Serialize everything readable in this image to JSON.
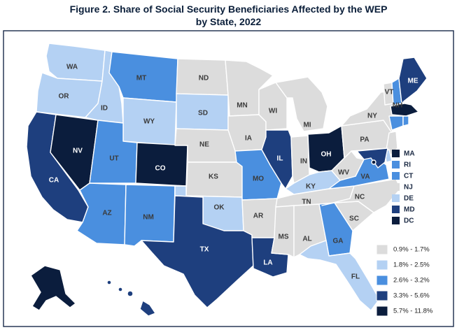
{
  "title": {
    "line1": "Figure 2. Share of Social Security Beneficiaries Affected by the WEP",
    "line2": "by State, 2022"
  },
  "colors": {
    "c0": "#dcdcdc",
    "c1": "#b4d1f3",
    "c2": "#4a8fdf",
    "c3": "#1e3f7e",
    "c4": "#0b1d3d"
  },
  "legend": [
    {
      "label": "0.9% - 1.7%",
      "class": "c0"
    },
    {
      "label": "1.8% - 2.5%",
      "class": "c1"
    },
    {
      "label": "2.6% - 3.2%",
      "class": "c2"
    },
    {
      "label": "3.3% - 5.6%",
      "class": "c3"
    },
    {
      "label": "5.7% - 11.8%",
      "class": "c4"
    }
  ],
  "small_states": [
    {
      "code": "MA",
      "class": "c4"
    },
    {
      "code": "RI",
      "class": "c2"
    },
    {
      "code": "CT",
      "class": "c2"
    },
    {
      "code": "NJ",
      "class": "c0"
    },
    {
      "code": "DE",
      "class": "c1"
    },
    {
      "code": "MD",
      "class": "c3"
    },
    {
      "code": "DC",
      "class": "c4"
    }
  ],
  "states": [
    {
      "code": "WA",
      "class": "c1"
    },
    {
      "code": "OR",
      "class": "c1"
    },
    {
      "code": "CA",
      "class": "c3"
    },
    {
      "code": "NV",
      "class": "c4"
    },
    {
      "code": "ID",
      "class": "c1"
    },
    {
      "code": "MT",
      "class": "c2"
    },
    {
      "code": "WY",
      "class": "c1"
    },
    {
      "code": "UT",
      "class": "c2"
    },
    {
      "code": "AZ",
      "class": "c2"
    },
    {
      "code": "NM",
      "class": "c2"
    },
    {
      "code": "CO",
      "class": "c4"
    },
    {
      "code": "ND",
      "class": "c0"
    },
    {
      "code": "SD",
      "class": "c1"
    },
    {
      "code": "NE",
      "class": "c0"
    },
    {
      "code": "KS",
      "class": "c0"
    },
    {
      "code": "OK",
      "class": "c1"
    },
    {
      "code": "TX",
      "class": "c3"
    },
    {
      "code": "MN",
      "class": "c0"
    },
    {
      "code": "IA",
      "class": "c0"
    },
    {
      "code": "MO",
      "class": "c2"
    },
    {
      "code": "AR",
      "class": "c0"
    },
    {
      "code": "LA",
      "class": "c3"
    },
    {
      "code": "WI",
      "class": "c0"
    },
    {
      "code": "IL",
      "class": "c3"
    },
    {
      "code": "MI",
      "class": "c0"
    },
    {
      "code": "IN",
      "class": "c0"
    },
    {
      "code": "OH",
      "class": "c4"
    },
    {
      "code": "KY",
      "class": "c1"
    },
    {
      "code": "TN",
      "class": "c0"
    },
    {
      "code": "MS",
      "class": "c0"
    },
    {
      "code": "AL",
      "class": "c0"
    },
    {
      "code": "GA",
      "class": "c2"
    },
    {
      "code": "FL",
      "class": "c1"
    },
    {
      "code": "SC",
      "class": "c0"
    },
    {
      "code": "NC",
      "class": "c0"
    },
    {
      "code": "VA",
      "class": "c2"
    },
    {
      "code": "WV",
      "class": "c0"
    },
    {
      "code": "PA",
      "class": "c0"
    },
    {
      "code": "NY",
      "class": "c0"
    },
    {
      "code": "VT",
      "class": "c0"
    },
    {
      "code": "NH",
      "class": "c2"
    },
    {
      "code": "ME",
      "class": "c3"
    },
    {
      "code": "AK",
      "class": "c4"
    },
    {
      "code": "HI",
      "class": "c3"
    }
  ]
}
